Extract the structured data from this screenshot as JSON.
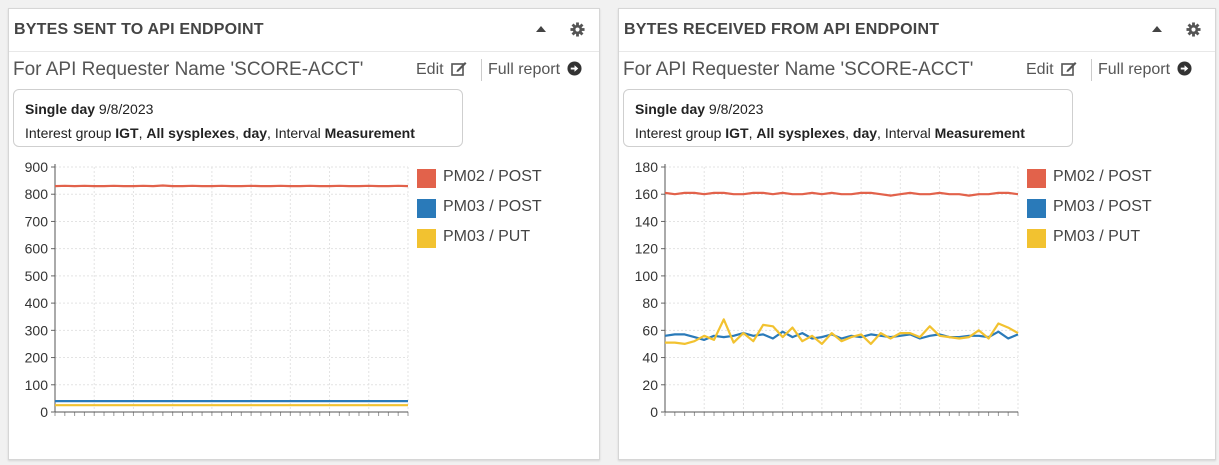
{
  "colors": {
    "pm02_post": "#e2624b",
    "pm03_post": "#2a7ab9",
    "pm03_put": "#f2c230"
  },
  "panels": [
    {
      "title": "BYTES SENT TO API ENDPOINT",
      "subtitle": "For API Requester Name 'SCORE-ACCT'",
      "edit_label": "Edit",
      "report_label": "Full report",
      "info": {
        "line1_bold": "Single day",
        "line1_value": "9/8/2023",
        "line2_prefix": "Interest group",
        "line2_group": "IGT",
        "line2_sep1": ",",
        "line2_sysplex": "All sysplexes",
        "line2_sep2": ",",
        "line2_day": "day",
        "line2_interval_prefix": ", Interval",
        "line2_interval": "Measurement"
      },
      "legend": [
        "PM02 / POST",
        "PM03 / POST",
        "PM03 / PUT"
      ],
      "icons": [
        "caret-up-icon",
        "gear-icon",
        "edit-icon",
        "arrow-circle-right-icon"
      ]
    },
    {
      "title": "BYTES RECEIVED FROM API ENDPOINT",
      "subtitle": "For API Requester Name 'SCORE-ACCT'",
      "edit_label": "Edit",
      "report_label": "Full report",
      "info": {
        "line1_bold": "Single day",
        "line1_value": "9/8/2023",
        "line2_prefix": "Interest group",
        "line2_group": "IGT",
        "line2_sep1": ",",
        "line2_sysplex": "All sysplexes",
        "line2_sep2": ",",
        "line2_day": "day",
        "line2_interval_prefix": ", Interval",
        "line2_interval": "Measurement"
      },
      "legend": [
        "PM02 / POST",
        "PM03 / POST",
        "PM03 / PUT"
      ],
      "icons": [
        "caret-up-icon",
        "gear-icon",
        "edit-icon",
        "arrow-circle-right-icon"
      ]
    }
  ],
  "chart_data": [
    {
      "type": "line",
      "title": "BYTES SENT TO API ENDPOINT",
      "ylim": [
        0,
        900
      ],
      "yticks": [
        0,
        100,
        200,
        300,
        400,
        500,
        600,
        700,
        800,
        900
      ],
      "grid": true,
      "legend_position": "right",
      "x": [
        1,
        2,
        3,
        4,
        5,
        6,
        7,
        8,
        9,
        10,
        11,
        12,
        13,
        14,
        15,
        16,
        17,
        18,
        19,
        20,
        21,
        22,
        23,
        24,
        25,
        26,
        27,
        28,
        29,
        30,
        31,
        32,
        33,
        34,
        35,
        36,
        37
      ],
      "series": [
        {
          "name": "PM02 / POST",
          "color": "#e2624b",
          "values": [
            830,
            831,
            830,
            831,
            830,
            830,
            831,
            830,
            830,
            831,
            830,
            832,
            830,
            830,
            831,
            830,
            830,
            831,
            830,
            830,
            831,
            830,
            830,
            831,
            830,
            830,
            831,
            830,
            830,
            831,
            830,
            830,
            831,
            830,
            830,
            831,
            830
          ]
        },
        {
          "name": "PM03 / POST",
          "color": "#2a7ab9",
          "values": [
            40,
            40,
            40,
            40,
            40,
            40,
            40,
            40,
            40,
            40,
            40,
            40,
            40,
            40,
            40,
            40,
            40,
            40,
            40,
            40,
            40,
            40,
            40,
            40,
            40,
            40,
            40,
            40,
            40,
            40,
            40,
            40,
            40,
            40,
            40,
            40,
            40
          ]
        },
        {
          "name": "PM03 / PUT",
          "color": "#f2c230",
          "values": [
            25,
            25,
            25,
            25,
            25,
            25,
            25,
            25,
            25,
            25,
            25,
            25,
            25,
            25,
            25,
            25,
            25,
            25,
            25,
            25,
            25,
            25,
            25,
            25,
            25,
            25,
            25,
            25,
            25,
            25,
            25,
            25,
            25,
            25,
            25,
            25,
            25
          ]
        }
      ]
    },
    {
      "type": "line",
      "title": "BYTES RECEIVED FROM API ENDPOINT",
      "ylim": [
        0,
        180
      ],
      "yticks": [
        0,
        20,
        40,
        60,
        80,
        100,
        120,
        140,
        160,
        180
      ],
      "grid": true,
      "legend_position": "right",
      "x": [
        1,
        2,
        3,
        4,
        5,
        6,
        7,
        8,
        9,
        10,
        11,
        12,
        13,
        14,
        15,
        16,
        17,
        18,
        19,
        20,
        21,
        22,
        23,
        24,
        25,
        26,
        27,
        28,
        29,
        30,
        31,
        32,
        33,
        34,
        35,
        36,
        37
      ],
      "series": [
        {
          "name": "PM02 / POST",
          "color": "#e2624b",
          "values": [
            161,
            160,
            161,
            161,
            160,
            161,
            161,
            160,
            160,
            161,
            161,
            160,
            161,
            160,
            160,
            161,
            160,
            161,
            160,
            160,
            161,
            161,
            160,
            159,
            160,
            161,
            160,
            160,
            161,
            160,
            160,
            159,
            160,
            160,
            161,
            161,
            160
          ]
        },
        {
          "name": "PM03 / POST",
          "color": "#2a7ab9",
          "values": [
            56,
            57,
            57,
            55,
            53,
            56,
            55,
            56,
            58,
            56,
            57,
            54,
            59,
            55,
            58,
            54,
            55,
            57,
            54,
            56,
            55,
            57,
            56,
            55,
            56,
            57,
            54,
            56,
            57,
            55,
            55,
            56,
            56,
            55,
            59,
            54,
            57
          ]
        },
        {
          "name": "PM03 / PUT",
          "color": "#f2c230",
          "values": [
            51,
            51,
            50,
            52,
            56,
            53,
            68,
            51,
            58,
            52,
            64,
            63,
            55,
            62,
            52,
            56,
            50,
            58,
            52,
            55,
            57,
            50,
            58,
            54,
            58,
            58,
            55,
            63,
            56,
            55,
            54,
            55,
            60,
            54,
            65,
            62,
            58
          ]
        }
      ]
    }
  ]
}
